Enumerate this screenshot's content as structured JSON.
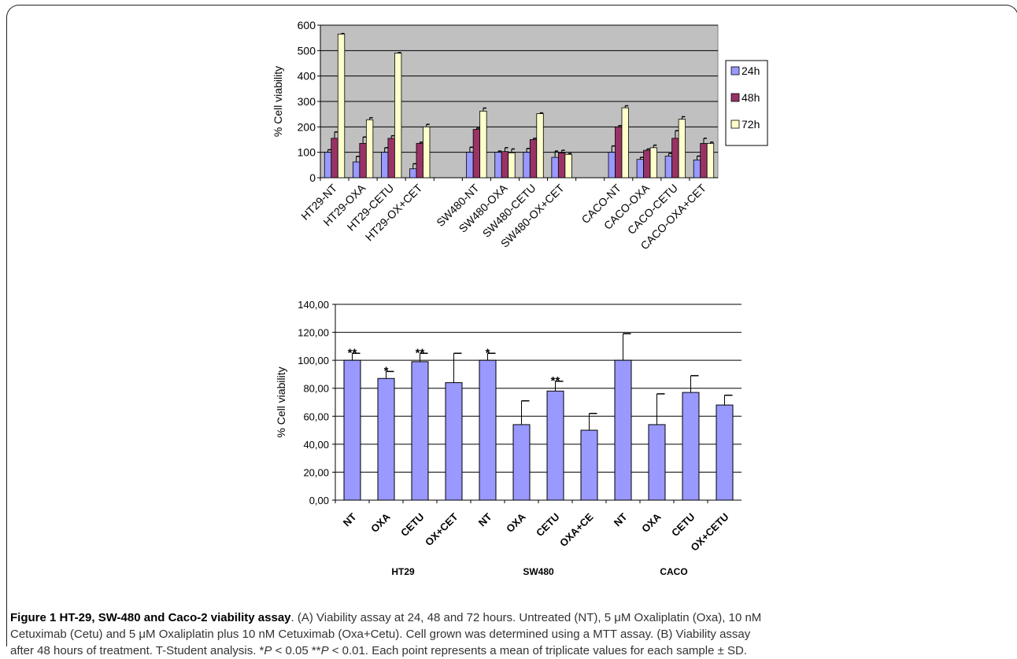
{
  "chart_data": [
    {
      "type": "bar",
      "ylabel": "% Cell viability",
      "ylim": [
        0,
        600
      ],
      "yticks": [
        "0",
        "100",
        "200",
        "300",
        "400",
        "500",
        "600"
      ],
      "categories": [
        "HT29-NT",
        "HT29-OXA",
        "HT29-CETU",
        "HT29-OX+CET",
        "",
        "SW480-NT",
        "SW480-OXA",
        "SW480-CETU",
        "SW480-OX+CET",
        "",
        "CACO-NT",
        "CACO-OXA",
        "CACO-CETU",
        "CACO-OXA+CET"
      ],
      "series": [
        {
          "name": "24h",
          "color": "#9999ff",
          "values": [
            100,
            62,
            100,
            35,
            null,
            100,
            100,
            100,
            80,
            null,
            100,
            72,
            85,
            70
          ],
          "errors": [
            10,
            22,
            18,
            20,
            null,
            20,
            5,
            15,
            25,
            null,
            25,
            8,
            10,
            15
          ]
        },
        {
          "name": "48h",
          "color": "#993366",
          "values": [
            155,
            135,
            155,
            135,
            null,
            190,
            103,
            150,
            98,
            null,
            200,
            108,
            155,
            135
          ],
          "errors": [
            25,
            25,
            10,
            5,
            null,
            5,
            15,
            5,
            10,
            null,
            5,
            5,
            30,
            20
          ]
        },
        {
          "name": "72h",
          "color": "#ffffcc",
          "values": [
            565,
            228,
            490,
            200,
            null,
            262,
            98,
            252,
            92,
            null,
            275,
            118,
            230,
            135
          ],
          "errors": [
            2,
            8,
            2,
            10,
            null,
            12,
            15,
            3,
            3,
            null,
            8,
            10,
            10,
            5
          ]
        }
      ],
      "legend": "right",
      "grid": true,
      "plot_background": "#c0c0c0"
    },
    {
      "type": "bar",
      "ylabel": "% Cell viability",
      "ylim": [
        0,
        140
      ],
      "yticks": [
        "0,00",
        "20,00",
        "40,00",
        "60,00",
        "80,00",
        "100,00",
        "120,00",
        "140,00"
      ],
      "categories": [
        "NT",
        "OXA",
        "CETU",
        "OX+CET",
        "NT",
        "OXA",
        "CETU",
        "OXA+CE",
        "NT",
        "OXA",
        "CETU",
        "OX+CETU"
      ],
      "values": [
        100,
        87,
        99,
        84,
        100,
        54,
        78,
        50,
        100,
        54,
        77,
        68
      ],
      "errors": [
        5,
        5,
        6,
        21,
        5,
        17,
        7,
        12,
        19,
        22,
        12,
        7
      ],
      "significance": [
        "**",
        "*",
        "**",
        "",
        "*",
        "",
        "**",
        "",
        "",
        "",
        "",
        ""
      ],
      "groups": [
        "HT29",
        "SW480",
        "CACO"
      ],
      "color": "#9999ff",
      "grid": true
    }
  ],
  "caption": {
    "title": "Figure 1 HT-29, SW-480 and Caco-2 viability assay",
    "line1": ". (A) Viability assay at 24, 48 and 72 hours. Untreated (NT), 5 μM Oxaliplatin (Oxa), 10 nM",
    "line2": "Cetuximab (Cetu) and 5 μM Oxaliplatin plus 10 nM Cetuximab (Oxa+Cetu). Cell grown was determined using a MTT assay. (B) Viability assay",
    "line3a": "after 48 hours of treatment. T-Student analysis. *",
    "p": "P",
    "line3b": " < 0.05 **",
    "line3c": " < 0.01. Each point represents a mean of triplicate values for each sample ± SD."
  }
}
